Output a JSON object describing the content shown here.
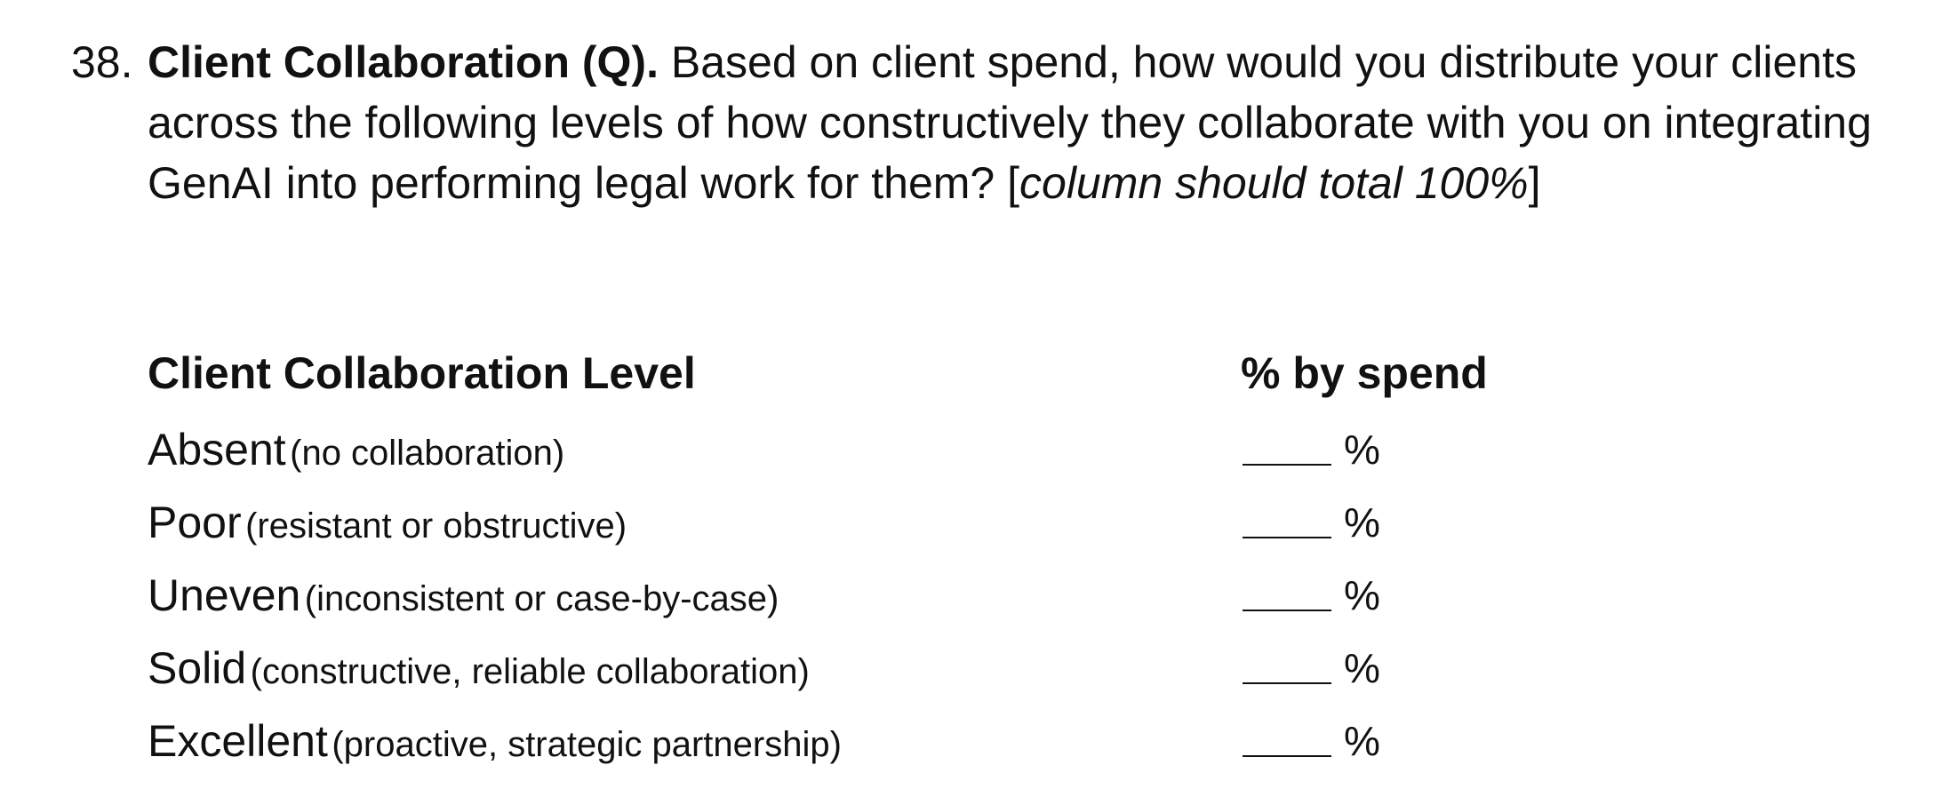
{
  "question": {
    "number": "38.",
    "title": "Client Collaboration (Q).",
    "text": " Based on client spend, how would you distribute your clients across the following levels of how constructively they collaborate with you on integrating GenAI into performing legal work for them? [",
    "note": "column should total 100%",
    "close": "]"
  },
  "table": {
    "header_level": "Client Collaboration Level",
    "header_pct": "% by spend",
    "rows": [
      {
        "level": "Absent",
        "description": "(no collaboration)",
        "unit": "%"
      },
      {
        "level": "Poor",
        "description": "(resistant or obstructive)",
        "unit": "%"
      },
      {
        "level": "Uneven",
        "description": "(inconsistent or case-by-case)",
        "unit": "%"
      },
      {
        "level": "Solid",
        "description": "(constructive, reliable collaboration)",
        "unit": "%"
      },
      {
        "level": "Excellent",
        "description": "(proactive, strategic partnership)",
        "unit": "%"
      }
    ]
  }
}
